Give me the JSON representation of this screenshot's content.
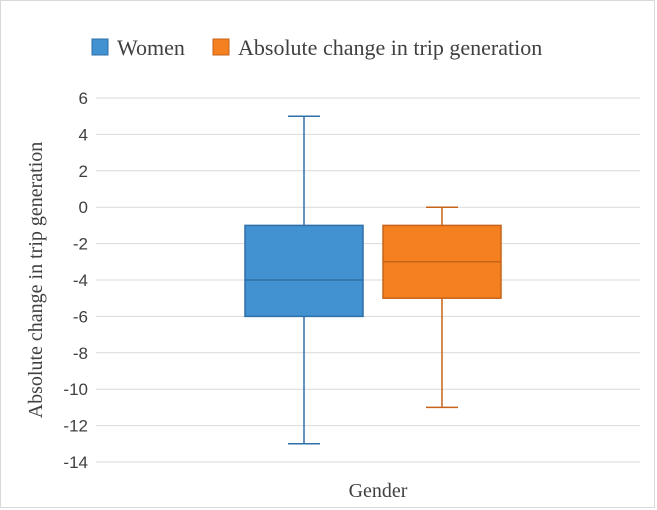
{
  "chart_data": {
    "type": "box",
    "xlabel": "Gender",
    "ylabel": "Absolute change in trip generation",
    "ylim": [
      -14,
      6
    ],
    "ytick_step": 2,
    "yticks": [
      "-14",
      "-12",
      "-10",
      "-8",
      "-6",
      "-4",
      "-2",
      "0",
      "2",
      "4",
      "6"
    ],
    "grid": true,
    "legend": {
      "position": "top",
      "entries": [
        "Women",
        "Absolute change in trip generation"
      ]
    },
    "series": [
      {
        "name": "Women",
        "color": "#4292d1",
        "edge_color": "#2f6fa8",
        "min": -13,
        "q1": -6,
        "median": -4,
        "q3": -1,
        "max": 5
      },
      {
        "name": "Absolute change in trip generation",
        "color": "#f58020",
        "edge_color": "#c7621a",
        "min": -11,
        "q1": -5,
        "median": -3,
        "q3": -1,
        "max": 0
      }
    ]
  }
}
